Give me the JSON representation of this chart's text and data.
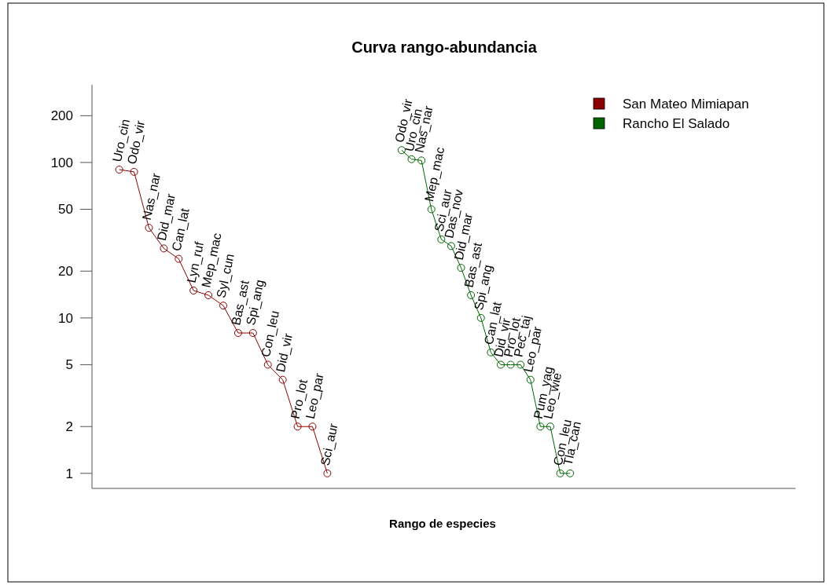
{
  "chart_data": {
    "type": "line",
    "title": "Curva rango-abundancia",
    "xlabel": "Rango de especies",
    "log": "y",
    "ylim": [
      0.8,
      316
    ],
    "yticks": [
      1,
      2,
      5,
      10,
      20,
      50,
      100,
      200
    ],
    "tick_labels": "y",
    "marker": "circle",
    "line_style": "solid",
    "legend": "top right",
    "categories": [
      null,
      null,
      null,
      null,
      null,
      null,
      null,
      null,
      null,
      null,
      null,
      null,
      null,
      null,
      null,
      null,
      null,
      null,
      null,
      null,
      null,
      null,
      null,
      null,
      null,
      null,
      null,
      null,
      null,
      null,
      null,
      null,
      null,
      null,
      null,
      null,
      null,
      null,
      null,
      null,
      null,
      null,
      null,
      null,
      null,
      null,
      null,
      null,
      null,
      null,
      null,
      null,
      null,
      null,
      null,
      null,
      null,
      null,
      null,
      null,
      null,
      null,
      null,
      null,
      null,
      null,
      null,
      null,
      null,
      null,
      null,
      null,
      null,
      null,
      null,
      null,
      null,
      null,
      null,
      null,
      null,
      null,
      null,
      null,
      null,
      null,
      null,
      null,
      null,
      null,
      null,
      null,
      null,
      null,
      null,
      null,
      null,
      null,
      null,
      null,
      null,
      null,
      null,
      null,
      null,
      null,
      null,
      null,
      null,
      null,
      null,
      null,
      null,
      null,
      null,
      null,
      null,
      null,
      null,
      null,
      null,
      null,
      null,
      null,
      null,
      null,
      null,
      null,
      null,
      null,
      null,
      null,
      null,
      null,
      null,
      null,
      null,
      null,
      null,
      null,
      null,
      null
    ],
    "series": [
      {
        "name": "San Mateo Mimiapan",
        "color": "#8b0000",
        "values": [
          null,
          null,
          null,
          null,
          null,
          90,
          null,
          null,
          87,
          null,
          null,
          38,
          null,
          null,
          28,
          null,
          null,
          24,
          null,
          null,
          15,
          null,
          null,
          14,
          null,
          null,
          12,
          null,
          null,
          8,
          null,
          null,
          8,
          null,
          null,
          5,
          null,
          null,
          4,
          null,
          null,
          2,
          null,
          null,
          2,
          null,
          null,
          1,
          null,
          null,
          null,
          null,
          null,
          null,
          null,
          null,
          null,
          null,
          null,
          null,
          null,
          null,
          null,
          null,
          null,
          null,
          null,
          null,
          null,
          null,
          null,
          null,
          null,
          null,
          null,
          null,
          null,
          null,
          null,
          null,
          null,
          null,
          null,
          null,
          null,
          null,
          null,
          null,
          null,
          null,
          null,
          null,
          null,
          null,
          null,
          null,
          null,
          null,
          null,
          null,
          null,
          null,
          null,
          null,
          null,
          null,
          null,
          null,
          null,
          null,
          null,
          null,
          null,
          null,
          null,
          null,
          null,
          null,
          null,
          null,
          null,
          null,
          null,
          null,
          null,
          null,
          null,
          null,
          null,
          null,
          null,
          null,
          null,
          null,
          null,
          null,
          null,
          null,
          null,
          null,
          null,
          null
        ],
        "value_labels": [
          null,
          null,
          null,
          null,
          null,
          "Uro_cin",
          null,
          null,
          "Odo_vir",
          null,
          null,
          "Nas_nar",
          null,
          null,
          "Did_mar",
          null,
          null,
          "Can_lat",
          null,
          null,
          "Lyn_ruf",
          null,
          null,
          "Mep_mac",
          null,
          null,
          "Syl_cun",
          null,
          null,
          "Bas_ast",
          null,
          null,
          "Spi_ang",
          null,
          null,
          "Con_leu",
          null,
          null,
          "Did_vir",
          null,
          null,
          "Pro_lot",
          null,
          null,
          "Leo_par",
          null,
          null,
          "Sci_aur",
          null,
          null,
          null,
          null,
          null,
          null,
          null,
          null,
          null,
          null,
          null,
          null,
          null,
          null,
          null,
          null,
          null,
          null,
          null,
          null,
          null,
          null,
          null,
          null,
          null,
          null,
          null,
          null,
          null,
          null,
          null,
          null,
          null,
          null,
          null,
          null,
          null,
          null,
          null,
          null,
          null,
          null,
          null,
          null,
          null,
          null,
          null,
          null,
          null,
          null,
          null,
          null,
          null,
          null,
          null,
          null,
          null,
          null,
          null,
          null,
          null,
          null,
          null,
          null,
          null,
          null,
          null,
          null,
          null,
          null,
          null,
          null,
          null,
          null,
          null,
          null,
          null,
          null,
          null,
          null,
          null,
          null,
          null,
          null,
          null,
          null,
          null,
          null,
          null,
          null,
          null,
          null,
          null,
          null
        ]
      },
      {
        "name": "Rancho El Salado",
        "color": "#006400",
        "values": [
          null,
          null,
          null,
          null,
          null,
          null,
          null,
          null,
          null,
          null,
          null,
          null,
          null,
          null,
          null,
          null,
          null,
          null,
          null,
          null,
          null,
          null,
          null,
          null,
          null,
          null,
          null,
          null,
          null,
          null,
          null,
          null,
          null,
          null,
          null,
          null,
          null,
          null,
          null,
          null,
          null,
          null,
          null,
          null,
          null,
          null,
          null,
          null,
          null,
          null,
          null,
          null,
          null,
          null,
          null,
          null,
          null,
          null,
          null,
          null,
          null,
          null,
          120,
          null,
          105,
          null,
          103,
          null,
          50,
          null,
          32,
          null,
          29,
          null,
          21,
          null,
          14,
          null,
          10,
          null,
          6,
          null,
          5,
          null,
          5,
          null,
          5,
          null,
          4,
          null,
          2,
          null,
          2,
          null,
          1,
          null,
          1,
          null,
          null,
          null,
          null,
          null,
          null,
          null,
          null,
          null,
          null,
          null,
          null,
          null,
          null,
          null,
          null,
          null,
          null,
          null,
          null,
          null,
          null,
          null,
          null,
          null,
          null,
          null,
          null,
          null,
          null,
          null,
          null,
          null,
          null,
          null,
          null,
          null,
          null,
          null,
          null,
          null,
          null,
          null,
          null,
          null
        ],
        "value_labels": [
          null,
          null,
          null,
          null,
          null,
          null,
          null,
          null,
          null,
          null,
          null,
          null,
          null,
          null,
          null,
          null,
          null,
          null,
          null,
          null,
          null,
          null,
          null,
          null,
          null,
          null,
          null,
          null,
          null,
          null,
          null,
          null,
          null,
          null,
          null,
          null,
          null,
          null,
          null,
          null,
          null,
          null,
          null,
          null,
          null,
          null,
          null,
          null,
          null,
          null,
          null,
          null,
          null,
          null,
          null,
          null,
          null,
          null,
          null,
          null,
          null,
          null,
          "Odo_vir",
          null,
          "Uro_cin",
          null,
          "Nas_nar",
          null,
          "Mep_mac",
          null,
          "Sci_aur",
          null,
          "Das_nov",
          null,
          "Did_mar",
          null,
          "Bas_ast",
          null,
          "Spi_ang",
          null,
          "Can_lat",
          null,
          "Did_vir",
          null,
          "Pro_lot",
          null,
          "Pec_taj",
          null,
          "Leo_par",
          null,
          "Pum_yag",
          null,
          "Leo_wie",
          null,
          "Con_leu",
          null,
          "Tla_can",
          null,
          null,
          null,
          null,
          null,
          null,
          null,
          null,
          null,
          null,
          null,
          null,
          null,
          null,
          null,
          null,
          null,
          null,
          null,
          null,
          null,
          null,
          null,
          null,
          null,
          null,
          null,
          null,
          null,
          null,
          null,
          null,
          null,
          null,
          null,
          null,
          null,
          null,
          null,
          null,
          null,
          null,
          null,
          null,
          null
        ]
      }
    ]
  }
}
